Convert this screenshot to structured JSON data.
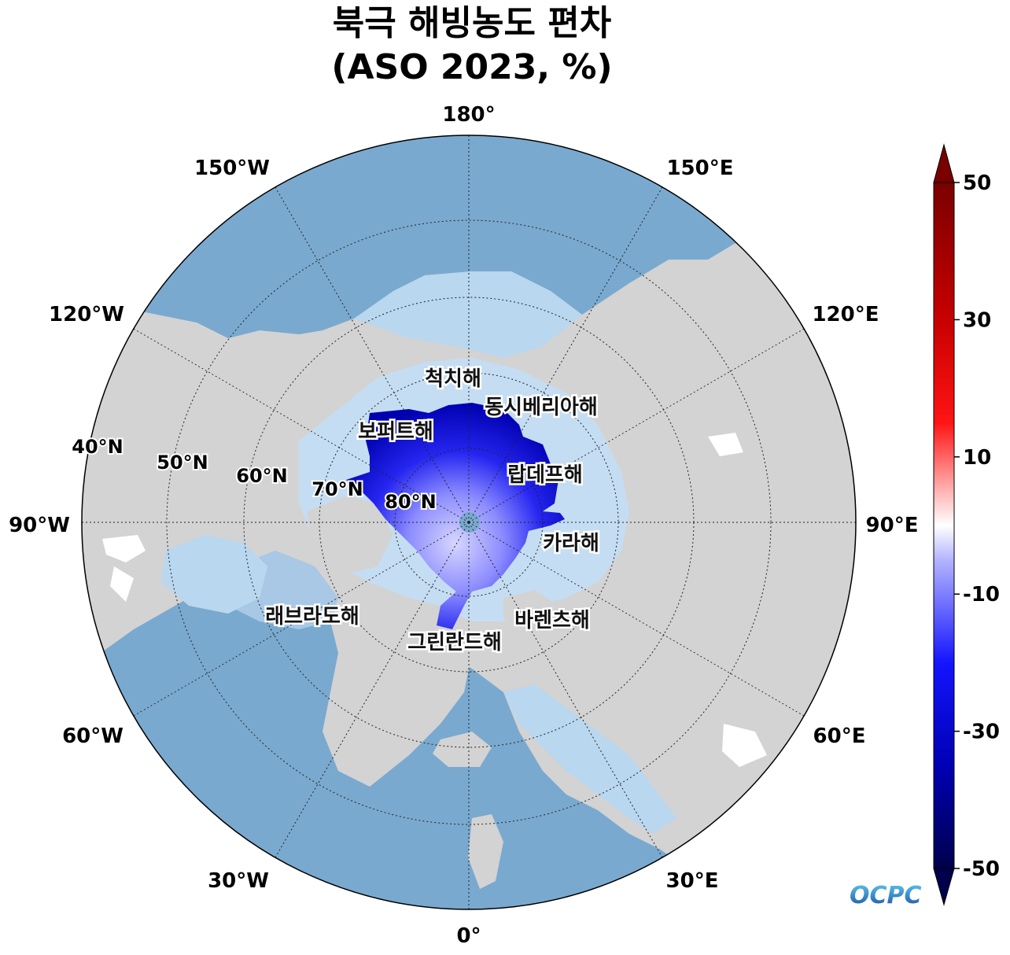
{
  "title": {
    "line1": "북극 해빙농도 편차",
    "line2": "(ASO 2023, %)"
  },
  "map": {
    "projection": "north polar stereographic",
    "longitude_labels": [
      "180°",
      "150°E",
      "120°E",
      "90°E",
      "60°E",
      "30°E",
      "0°",
      "30°W",
      "60°W",
      "90°W",
      "120°W",
      "150°W"
    ],
    "latitude_labels": [
      "40°N",
      "50°N",
      "60°N",
      "70°N",
      "80°N"
    ],
    "sea_labels": [
      "척치해",
      "동시베리아해",
      "보퍼트해",
      "랍데프해",
      "카라해",
      "바렌츠해",
      "래브라도해",
      "그린란드해"
    ],
    "colors": {
      "land": "#d3d3d3",
      "ocean": "#7aa9cf",
      "shelf": "#b9d7ef",
      "anomaly_strong": "#0000b4",
      "anomaly_weak": "#c8c8ff"
    }
  },
  "colorbar": {
    "ticks": [
      "50",
      "30",
      "10",
      "-10",
      "-30",
      "-50"
    ],
    "range": [
      -50,
      50
    ],
    "extend": "both",
    "colormap": "seismic"
  },
  "logo": {
    "text": "OCPC"
  }
}
